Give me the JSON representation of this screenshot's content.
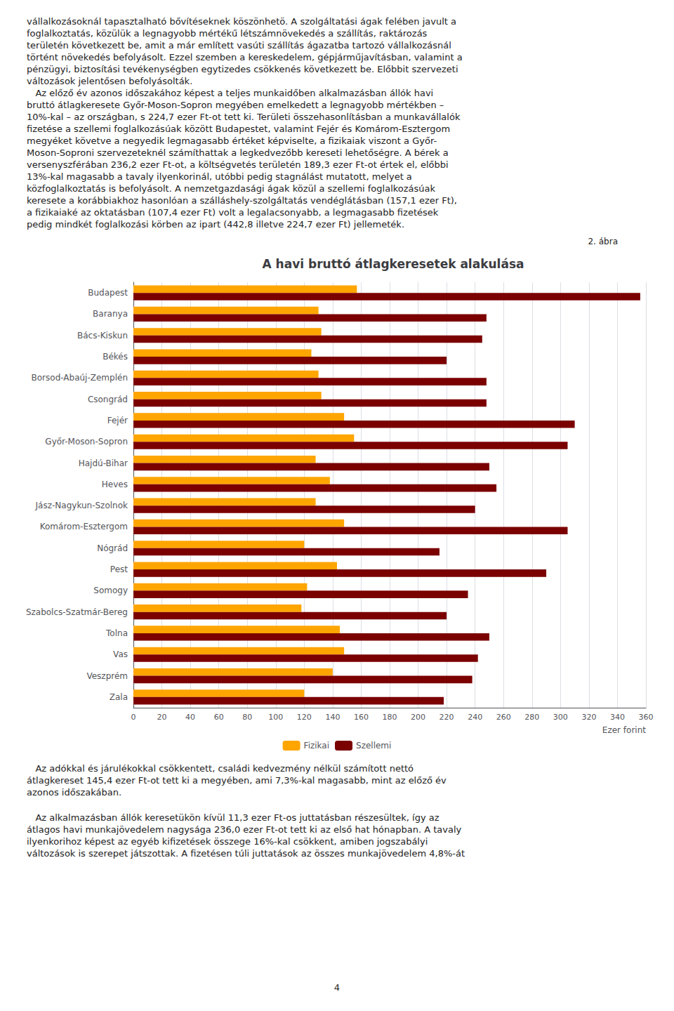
{
  "chart_data": {
    "type": "bar",
    "orientation": "horizontal",
    "title": "A havi bruttó átlagkeresetek alakulása",
    "xlabel": "Ezer forint",
    "categories": [
      "Budapest",
      "Baranya",
      "Bács-Kiskun",
      "Békés",
      "Borsod-Abaúj-Zemplén",
      "Csongrád",
      "Fejér",
      "Győr-Moson-Sopron",
      "Hajdú-Bihar",
      "Heves",
      "Jász-Nagykun-Szolnok",
      "Komárom-Esztergom",
      "Nógrád",
      "Pest",
      "Somogy",
      "Szabolcs-Szatmár-Bereg",
      "Tolna",
      "Vas",
      "Veszprém",
      "Zala"
    ],
    "series": [
      {
        "name": "Fizikai",
        "color": "#FFA500",
        "values": [
          157,
          130,
          132,
          125,
          130,
          132,
          148,
          155,
          128,
          138,
          128,
          148,
          120,
          143,
          122,
          118,
          145,
          148,
          140,
          120
        ]
      },
      {
        "name": "Szellemi",
        "color": "#7B0000",
        "values": [
          356,
          248,
          245,
          220,
          248,
          248,
          310,
          305,
          250,
          255,
          240,
          305,
          215,
          290,
          235,
          220,
          250,
          242,
          238,
          218
        ]
      }
    ],
    "xlim": [
      0,
      360
    ],
    "xticks": [
      0,
      20,
      40,
      60,
      80,
      100,
      120,
      140,
      160,
      180,
      200,
      220,
      240,
      260,
      280,
      300,
      320,
      340,
      360
    ],
    "grid": true,
    "legend": "bottom",
    "annotations": [
      "2. ábra",
      "vállalkozásoknál tapasztalható bővítéseknek köszönhetö. A szolgáltatási ágak felében javult a\nfoglalkoztatás, közülük a legnagyobb mértékű létszámnövekedés a szállítás, raktározás\nterületén következett be, amit a már említett vasúti szállítás ágazatba tartozó vállalkozásnál\ntörtént növekedés befolyásolt. Ezzel szemben a kereskedelem, gépjárműjavításban, valamint a\npénzügyi, biztosítási tevékenységben egytizedes csökkenés következett be. Előbbit szervezeti\nváltozások jelentősen befolyásolták.\n   Az előző év azonos időszakához képest a teljes munkaidőben alkalmazásban állók havi\nbruttó átlagkeresete Győr-Moson-Sopron megyében emelkedett a legnagyobb mértékben –\n10%-kal – az országban, s 224,7 ezer Ft-ot tett ki. Területi összehasonlításban a munkavállalók\nfizetése a szellemi foglalkozásúak között Budapestet, valamint Fejér és Komárom-Esztergom\nmegyéket követve a negyedik legmagasabb értéket képviselte, a fizikaiak viszont a Győr-\nMoson-Soproni szervezeteknél számíthattak a legkedvezőbb kereseti lehetőségre. A bérek a\nversenyszférában 236,2 ezer Ft-ot, a költségvetés területén 189,3 ezer Ft-ot értek el, előbbi\n13%-kal magasabb a tavaly ilyenkorinál, utóbbi pedig stagnálást mutatott, melyet a\nközfoglalkoztatás is befolyásolt. A nemzetgazdasági ágak közül a szellemi foglalkozásúak\nkeresete a korábbiakhoz hasonlóan a szálláshely-szolgáltatás vendéglátásban (157,1 ezer Ft),\na fizikaiaké az oktatásban (107,4 ezer Ft) volt a legalacsonyabb, a legmagasabb fizetések\npedig mindkét foglalkozási körben az ipart (442,8 illetve 224,7 ezer Ft) jellemeték.",
      "   Az adókkal és járulékokkal csökkentett, családi kedvezmény nélkül számított nettó\nátlagkereset 145,4 ezer Ft-ot tett ki a megyében, ami 7,3%-kal magasabb, mint az előző év\nazonos időszakában.",
      "   Az alkalmazásban állók keresetükön kívül 11,3 ezer Ft-os juttatásban részesültek, így az\nátlagos havi munkajövedelem nagysága 236,0 ezer Ft-ot tett ki az első hat hónapban. A tavaly\nilyenkorihoz képest az egyéb kifizetések összege 16%-kal csökkent, amiben jogszabályi\nváltozások is szerepet játszottak. A fizetésen túli juttatások az összes munkajövedelem 4,8%-át",
      "4"
    ]
  }
}
